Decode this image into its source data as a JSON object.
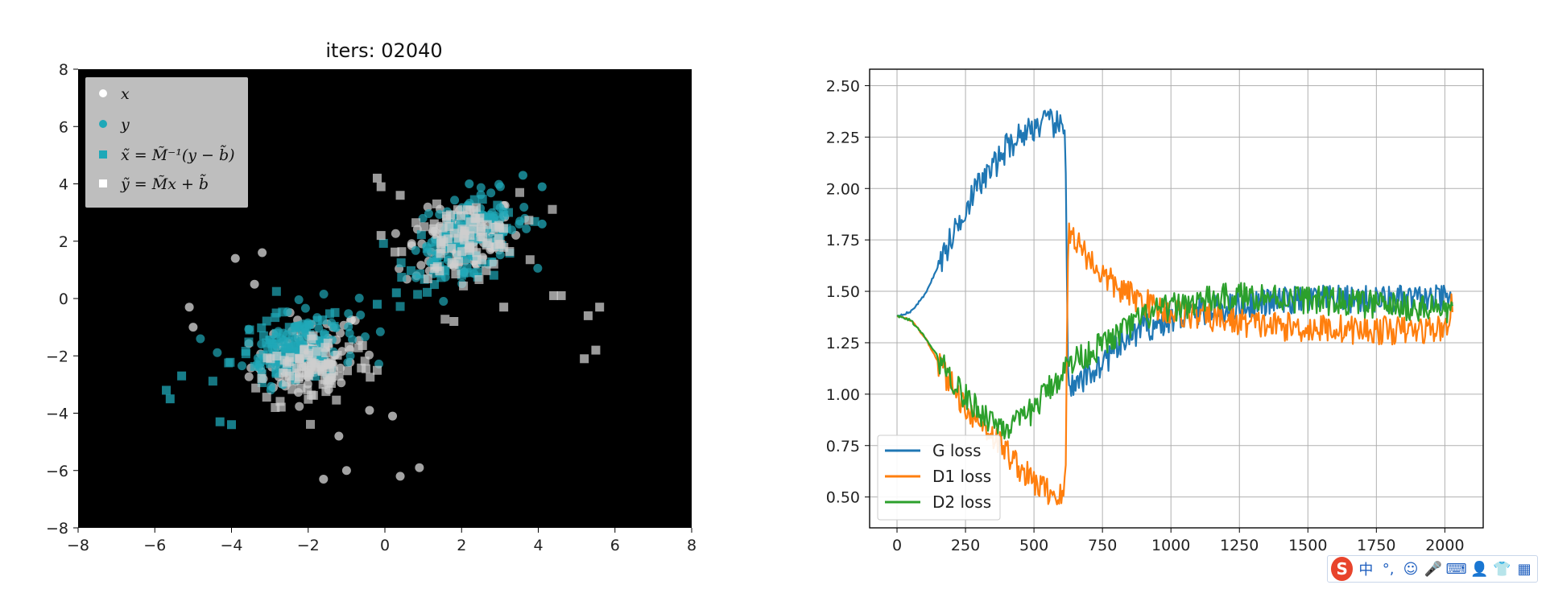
{
  "chart_data": [
    {
      "type": "scatter",
      "title": "iters: 02040",
      "background": "#000000",
      "xlim": [
        -8,
        8
      ],
      "ylim": [
        -8,
        8
      ],
      "xticks": [
        -8,
        -6,
        -4,
        -2,
        0,
        2,
        4,
        6,
        8
      ],
      "yticks": [
        -8,
        -6,
        -4,
        -2,
        0,
        2,
        4,
        6,
        8
      ],
      "grid": false,
      "legend_position": "top-left",
      "series": [
        {
          "name": "x",
          "marker": "circle",
          "color": "#d9d9d9",
          "cluster_centers": [
            [
              -2.0,
              -2.0
            ],
            [
              2.0,
              2.0
            ]
          ],
          "outliers": [
            [
              0.9,
              -5.9
            ],
            [
              0.4,
              -6.2
            ],
            [
              -1.0,
              -6.0
            ],
            [
              -1.6,
              -6.3
            ],
            [
              -1.2,
              -4.8
            ],
            [
              -3.9,
              1.4
            ],
            [
              -3.2,
              1.6
            ],
            [
              -3.4,
              0.5
            ],
            [
              -0.4,
              -3.9
            ],
            [
              0.2,
              -4.1
            ],
            [
              -5.0,
              -1.0
            ],
            [
              -5.1,
              -0.3
            ]
          ]
        },
        {
          "name": "y",
          "marker": "circle",
          "color": "#1fa8b8",
          "cluster_centers": [
            [
              -2.2,
              -1.5
            ],
            [
              2.3,
              2.3
            ]
          ],
          "outliers": [
            [
              3.6,
              4.3
            ],
            [
              4.1,
              3.9
            ],
            [
              4.1,
              2.6
            ],
            [
              2.2,
              4.0
            ],
            [
              1.3,
              1.3
            ]
          ]
        },
        {
          "name": "x̃ = M̃⁻¹(y − b̃)",
          "marker": "square",
          "color": "#1fa8b8",
          "cluster_centers": [
            [
              -2.5,
              -1.8
            ],
            [
              2.1,
              1.8
            ]
          ],
          "outliers": [
            [
              -5.7,
              -3.2
            ],
            [
              -5.6,
              -3.5
            ],
            [
              -4.3,
              -4.3
            ],
            [
              -4.0,
              -4.4
            ],
            [
              -5.3,
              -2.7
            ],
            [
              -0.2,
              -0.2
            ],
            [
              0.3,
              0.2
            ]
          ]
        },
        {
          "name": "ỹ = M̃x + b̃",
          "marker": "square",
          "color": "#cfcfcf",
          "cluster_centers": [
            [
              2.0,
              2.0
            ],
            [
              -1.8,
              -2.5
            ]
          ],
          "outliers": [
            [
              5.6,
              -0.3
            ],
            [
              5.3,
              -0.6
            ],
            [
              5.5,
              -1.8
            ],
            [
              5.2,
              -2.1
            ],
            [
              1.8,
              -0.8
            ],
            [
              3.1,
              -0.3
            ],
            [
              -0.2,
              4.2
            ],
            [
              -0.1,
              3.9
            ],
            [
              -0.1,
              2.2
            ],
            [
              4.6,
              0.1
            ],
            [
              4.4,
              0.1
            ],
            [
              0.4,
              3.6
            ]
          ]
        }
      ]
    },
    {
      "type": "line",
      "xlim": [
        -100,
        2140
      ],
      "ylim": [
        0.35,
        2.58
      ],
      "xticks": [
        0,
        250,
        500,
        750,
        1000,
        1250,
        1500,
        1750,
        2000
      ],
      "yticks": [
        0.5,
        0.75,
        1.0,
        1.25,
        1.5,
        1.75,
        2.0,
        2.25,
        2.5
      ],
      "ytick_labels": [
        "0.50",
        "0.75",
        "1.00",
        "1.25",
        "1.50",
        "1.75",
        "2.00",
        "2.25",
        "2.50"
      ],
      "grid": true,
      "legend_position": "bottom-left",
      "series": [
        {
          "name": "G loss",
          "color": "#1f77b4",
          "points": [
            [
              0,
              1.38
            ],
            [
              50,
              1.4
            ],
            [
              100,
              1.48
            ],
            [
              150,
              1.62
            ],
            [
              200,
              1.76
            ],
            [
              250,
              1.91
            ],
            [
              300,
              2.02
            ],
            [
              350,
              2.1
            ],
            [
              400,
              2.2
            ],
            [
              450,
              2.26
            ],
            [
              500,
              2.3
            ],
            [
              550,
              2.32
            ],
            [
              600,
              2.3
            ],
            [
              615,
              2.25
            ],
            [
              625,
              1.05
            ],
            [
              650,
              1.02
            ],
            [
              700,
              1.1
            ],
            [
              750,
              1.15
            ],
            [
              800,
              1.22
            ],
            [
              850,
              1.28
            ],
            [
              900,
              1.32
            ],
            [
              950,
              1.34
            ],
            [
              1000,
              1.36
            ],
            [
              1100,
              1.4
            ],
            [
              1200,
              1.42
            ],
            [
              1300,
              1.44
            ],
            [
              1400,
              1.45
            ],
            [
              1500,
              1.46
            ],
            [
              1600,
              1.46
            ],
            [
              1700,
              1.46
            ],
            [
              1800,
              1.46
            ],
            [
              1900,
              1.46
            ],
            [
              2000,
              1.46
            ],
            [
              2030,
              1.45
            ]
          ]
        },
        {
          "name": "D1 loss",
          "color": "#ff7f0e",
          "points": [
            [
              0,
              1.38
            ],
            [
              50,
              1.36
            ],
            [
              100,
              1.28
            ],
            [
              150,
              1.16
            ],
            [
              200,
              1.04
            ],
            [
              250,
              0.94
            ],
            [
              300,
              0.87
            ],
            [
              350,
              0.8
            ],
            [
              400,
              0.72
            ],
            [
              450,
              0.64
            ],
            [
              500,
              0.57
            ],
            [
              550,
              0.53
            ],
            [
              600,
              0.5
            ],
            [
              615,
              0.55
            ],
            [
              625,
              1.8
            ],
            [
              650,
              1.76
            ],
            [
              700,
              1.66
            ],
            [
              750,
              1.58
            ],
            [
              800,
              1.52
            ],
            [
              850,
              1.48
            ],
            [
              900,
              1.45
            ],
            [
              950,
              1.42
            ],
            [
              1000,
              1.4
            ],
            [
              1100,
              1.38
            ],
            [
              1200,
              1.36
            ],
            [
              1300,
              1.34
            ],
            [
              1400,
              1.33
            ],
            [
              1500,
              1.32
            ],
            [
              1600,
              1.32
            ],
            [
              1700,
              1.31
            ],
            [
              1800,
              1.31
            ],
            [
              1900,
              1.31
            ],
            [
              2000,
              1.32
            ],
            [
              2030,
              1.44
            ]
          ]
        },
        {
          "name": "D2 loss",
          "color": "#2ca02c",
          "points": [
            [
              0,
              1.38
            ],
            [
              50,
              1.36
            ],
            [
              100,
              1.28
            ],
            [
              150,
              1.18
            ],
            [
              200,
              1.08
            ],
            [
              250,
              0.98
            ],
            [
              300,
              0.92
            ],
            [
              350,
              0.87
            ],
            [
              400,
              0.84
            ],
            [
              450,
              0.86
            ],
            [
              500,
              0.93
            ],
            [
              550,
              1.02
            ],
            [
              600,
              1.1
            ],
            [
              625,
              1.14
            ],
            [
              650,
              1.17
            ],
            [
              700,
              1.2
            ],
            [
              750,
              1.24
            ],
            [
              800,
              1.28
            ],
            [
              850,
              1.33
            ],
            [
              900,
              1.37
            ],
            [
              950,
              1.4
            ],
            [
              1000,
              1.42
            ],
            [
              1100,
              1.45
            ],
            [
              1200,
              1.47
            ],
            [
              1300,
              1.48
            ],
            [
              1400,
              1.47
            ],
            [
              1500,
              1.46
            ],
            [
              1600,
              1.45
            ],
            [
              1700,
              1.44
            ],
            [
              1800,
              1.43
            ],
            [
              1900,
              1.42
            ],
            [
              2000,
              1.41
            ],
            [
              2030,
              1.4
            ]
          ]
        }
      ]
    }
  ],
  "tray": {
    "brand": "S",
    "icons": [
      {
        "name": "chinese-input-icon",
        "glyph": "中"
      },
      {
        "name": "punctuation-icon",
        "glyph": "°,"
      },
      {
        "name": "emoji-icon",
        "glyph": "☺"
      },
      {
        "name": "microphone-icon",
        "glyph": "🎤"
      },
      {
        "name": "keyboard-icon",
        "glyph": "⌨"
      },
      {
        "name": "user-icon",
        "glyph": "👤"
      },
      {
        "name": "skin-icon",
        "glyph": "👕"
      },
      {
        "name": "grid-icon",
        "glyph": "▦"
      }
    ]
  }
}
